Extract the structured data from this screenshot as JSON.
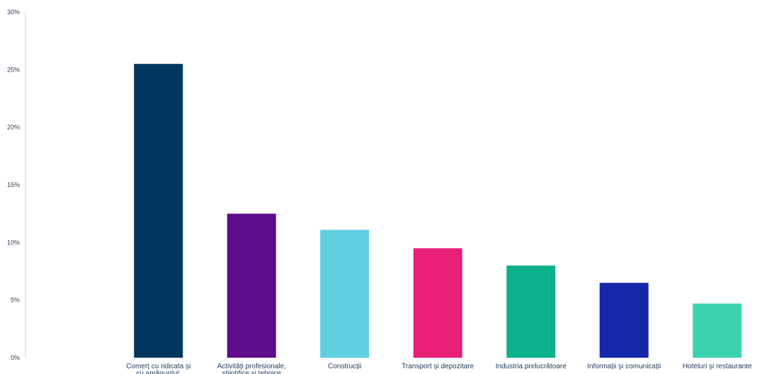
{
  "chart_data": {
    "type": "bar",
    "title": "",
    "xlabel": "",
    "ylabel": "",
    "ylim": [
      0,
      30
    ],
    "yticks": [
      "0%",
      "5%",
      "10%",
      "15%",
      "20%",
      "25%",
      "30%"
    ],
    "grid": false,
    "categories": [
      [
        "Comerț cu ridicata și",
        "cu amănuntul;"
      ],
      [
        "Activități profesionale,",
        "științifice și tehnice"
      ],
      [
        "Construcții"
      ],
      [
        "Transport și depozitare"
      ],
      [
        "Industria prelucrătoare"
      ],
      [
        "Informații și comunicații"
      ],
      [
        "Hoteluri și restaurante"
      ]
    ],
    "values": [
      25.5,
      12.5,
      11.1,
      9.5,
      8.0,
      6.5,
      4.7
    ],
    "colors": [
      "#01375e",
      "#5e0d8b",
      "#5fd0e0",
      "#e91e77",
      "#0ab18c",
      "#1428a9",
      "#3ed3b0"
    ],
    "axis_color": "#c8ccd2"
  }
}
